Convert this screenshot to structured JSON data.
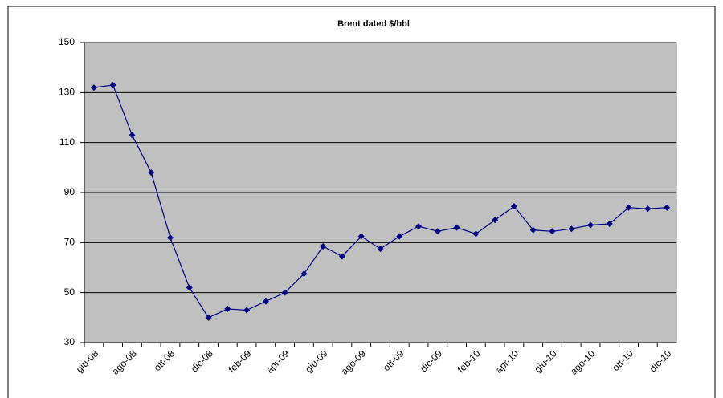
{
  "chart_data": {
    "type": "line",
    "title": "Brent dated $/bbl",
    "categories": [
      "giu-08",
      null,
      "ago-08",
      null,
      "ott-08",
      null,
      "dic-08",
      null,
      "feb-09",
      null,
      "apr-09",
      null,
      "giu-09",
      null,
      "ago-09",
      null,
      "ott-09",
      null,
      "dic-09",
      null,
      "feb-10",
      null,
      "apr-10",
      null,
      "giu-10",
      null,
      "ago-10",
      null,
      "ott-10",
      null,
      "dic-10"
    ],
    "series": [
      {
        "name": "Brent dated $/bbl",
        "color": "#000080",
        "values": [
          132,
          133,
          113,
          98,
          72,
          52,
          40,
          43.5,
          43,
          46.5,
          50,
          57.5,
          68.5,
          64.5,
          72.5,
          67.5,
          72.5,
          76.5,
          74.5,
          76,
          73.5,
          79,
          84.5,
          75,
          74.5,
          75.5,
          77,
          77.5,
          84,
          83.5,
          84
        ]
      }
    ],
    "ylim": [
      30,
      150
    ],
    "yticks": [
      30,
      50,
      70,
      90,
      110,
      130,
      150
    ],
    "grid": true
  }
}
